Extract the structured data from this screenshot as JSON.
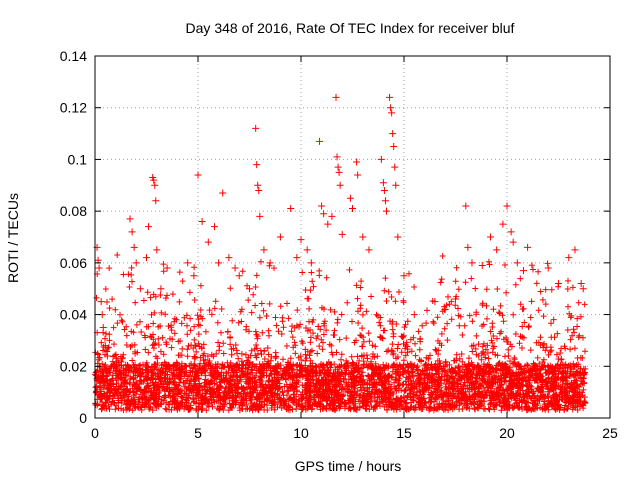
{
  "chart_data": {
    "type": "scatter",
    "title": "Day 348 of 2016, Rate Of TEC Index for receiver bluf",
    "xlabel": "GPS time / hours",
    "ylabel": "ROTI / TECUs",
    "xlim": [
      0,
      25
    ],
    "ylim": [
      0,
      0.14
    ],
    "xticks": [
      0,
      5,
      10,
      15,
      20,
      25
    ],
    "xtick_labels": [
      "0",
      "5",
      "10",
      "15",
      "20",
      "25"
    ],
    "yticks": [
      0,
      0.02,
      0.04,
      0.06,
      0.08,
      0.1,
      0.12,
      0.14
    ],
    "ytick_labels": [
      "0",
      "0.02",
      "0.04",
      "0.06",
      "0.08",
      "0.1",
      "0.12",
      "0.14"
    ],
    "grid": true,
    "marker": "+",
    "series": [
      {
        "name": "ROTI",
        "color": "#ff0000",
        "points": [
          [
            0.1,
            0.066
          ],
          [
            0.15,
            0.061
          ],
          [
            0.2,
            0.058
          ],
          [
            0.3,
            0.045
          ],
          [
            0.35,
            0.04
          ],
          [
            0.4,
            0.035
          ],
          [
            0.5,
            0.028
          ],
          [
            0.6,
            0.024
          ],
          [
            1.7,
            0.077
          ],
          [
            1.8,
            0.072
          ],
          [
            1.9,
            0.066
          ],
          [
            2.0,
            0.06
          ],
          [
            2.2,
            0.05
          ],
          [
            2.5,
            0.062
          ],
          [
            2.6,
            0.074
          ],
          [
            2.8,
            0.093
          ],
          [
            2.85,
            0.092
          ],
          [
            2.9,
            0.09
          ],
          [
            2.95,
            0.084
          ],
          [
            3.0,
            0.065
          ],
          [
            3.2,
            0.05
          ],
          [
            3.5,
            0.058
          ],
          [
            4.5,
            0.06
          ],
          [
            4.8,
            0.055
          ],
          [
            5.0,
            0.094
          ],
          [
            5.2,
            0.076
          ],
          [
            5.5,
            0.068
          ],
          [
            5.8,
            0.074
          ],
          [
            6.0,
            0.06
          ],
          [
            6.2,
            0.087
          ],
          [
            6.5,
            0.062
          ],
          [
            6.8,
            0.058
          ],
          [
            7.0,
            0.055
          ],
          [
            7.5,
            0.05
          ],
          [
            7.8,
            0.112
          ],
          [
            7.85,
            0.098
          ],
          [
            7.9,
            0.09
          ],
          [
            7.95,
            0.088
          ],
          [
            8.0,
            0.078
          ],
          [
            8.2,
            0.065
          ],
          [
            8.5,
            0.06
          ],
          [
            9.0,
            0.07
          ],
          [
            9.5,
            0.081
          ],
          [
            9.8,
            0.062
          ],
          [
            10.0,
            0.069
          ],
          [
            10.3,
            0.065
          ],
          [
            10.5,
            0.06
          ],
          [
            10.9,
            0.107
          ],
          [
            11.0,
            0.082
          ],
          [
            11.1,
            0.079
          ],
          [
            11.3,
            0.075
          ],
          [
            11.5,
            0.078
          ],
          [
            11.7,
            0.124
          ],
          [
            11.75,
            0.101
          ],
          [
            11.8,
            0.097
          ],
          [
            11.85,
            0.095
          ],
          [
            11.9,
            0.09
          ],
          [
            12.0,
            0.071
          ],
          [
            12.4,
            0.085
          ],
          [
            12.5,
            0.081
          ],
          [
            12.7,
            0.099
          ],
          [
            12.75,
            0.094
          ],
          [
            13.0,
            0.07
          ],
          [
            13.3,
            0.065
          ],
          [
            13.9,
            0.1
          ],
          [
            14.0,
            0.091
          ],
          [
            14.05,
            0.088
          ],
          [
            14.1,
            0.084
          ],
          [
            14.15,
            0.08
          ],
          [
            14.3,
            0.124
          ],
          [
            14.35,
            0.12
          ],
          [
            14.4,
            0.118
          ],
          [
            14.45,
            0.11
          ],
          [
            14.5,
            0.105
          ],
          [
            14.55,
            0.097
          ],
          [
            14.6,
            0.09
          ],
          [
            14.7,
            0.07
          ],
          [
            15.0,
            0.055
          ],
          [
            15.5,
            0.04
          ],
          [
            16.5,
            0.045
          ],
          [
            17.0,
            0.042
          ],
          [
            17.5,
            0.046
          ],
          [
            18.0,
            0.082
          ],
          [
            18.1,
            0.066
          ],
          [
            18.3,
            0.06
          ],
          [
            18.8,
            0.059
          ],
          [
            19.2,
            0.07
          ],
          [
            19.5,
            0.065
          ],
          [
            19.8,
            0.075
          ],
          [
            20.0,
            0.082
          ],
          [
            20.2,
            0.072
          ],
          [
            20.3,
            0.068
          ],
          [
            20.5,
            0.06
          ],
          [
            20.8,
            0.057
          ],
          [
            21.0,
            0.066
          ],
          [
            22.0,
            0.058
          ],
          [
            22.5,
            0.052
          ],
          [
            23.0,
            0.062
          ],
          [
            23.3,
            0.065
          ],
          [
            23.6,
            0.052
          ],
          [
            23.7,
            0.05
          ]
        ]
      }
    ]
  }
}
